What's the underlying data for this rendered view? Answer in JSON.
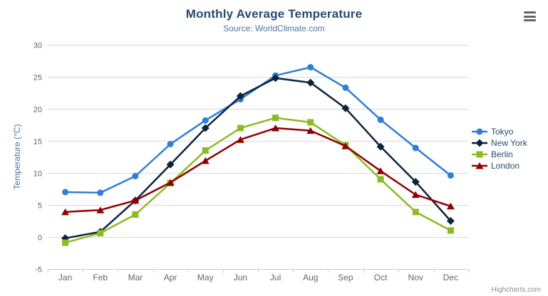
{
  "icons": {
    "menu": "hamburger-icon"
  },
  "credits": {
    "label": "Highcharts.com"
  },
  "colors": {
    "title": "#274b6d",
    "subtitle": "#4d759e",
    "axis_labels": "#666666",
    "y_axis_title": "#4d759e",
    "grid_line": "#d8d8d8",
    "axis_line": "#c0d0e0",
    "legend_text": "#274b6d",
    "credits_text": "#909090"
  },
  "chart_data": {
    "type": "line",
    "title": "Monthly Average Temperature",
    "subtitle": "Source: WorldClimate.com",
    "categories": [
      "Jan",
      "Feb",
      "Mar",
      "Apr",
      "May",
      "Jun",
      "Jul",
      "Aug",
      "Sep",
      "Oct",
      "Nov",
      "Dec"
    ],
    "series": [
      {
        "name": "Tokyo",
        "color": "#2f7ed8",
        "marker": "circle",
        "values": [
          7.0,
          6.9,
          9.5,
          14.5,
          18.2,
          21.5,
          25.2,
          26.5,
          23.3,
          18.3,
          13.9,
          9.6
        ]
      },
      {
        "name": "New York",
        "color": "#0d233a",
        "marker": "diamond",
        "values": [
          -0.2,
          0.8,
          5.7,
          11.3,
          17.0,
          22.0,
          24.8,
          24.1,
          20.1,
          14.1,
          8.6,
          2.5
        ]
      },
      {
        "name": "Berlin",
        "color": "#8bbc21",
        "marker": "square",
        "values": [
          -0.9,
          0.6,
          3.5,
          8.4,
          13.5,
          17.0,
          18.6,
          17.9,
          14.3,
          9.0,
          3.9,
          1.0
        ]
      },
      {
        "name": "London",
        "color": "#910000",
        "marker": "triangle",
        "values": [
          3.9,
          4.2,
          5.7,
          8.5,
          11.9,
          15.2,
          17.0,
          16.6,
          14.2,
          10.3,
          6.6,
          4.8
        ]
      }
    ],
    "xlabel": "",
    "ylabel": "Temperature (°C)",
    "ylim": [
      -5,
      30
    ],
    "ytick_step": 5,
    "grid": true,
    "legend_position": "right-middle"
  }
}
